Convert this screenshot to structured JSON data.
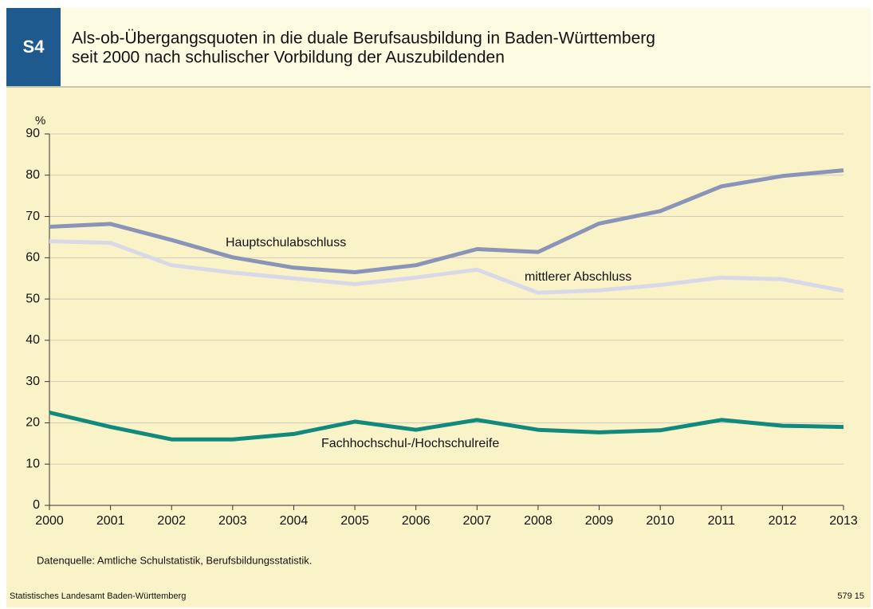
{
  "chart_data": {
    "type": "line",
    "badge": "S4",
    "title": "Als-ob-Übergangsquoten in die duale Berufsausbildung in Baden-Württemberg",
    "subtitle": "seit 2000 nach schulischer Vorbildung der Auszubildenden",
    "y_label": "%",
    "x": [
      2000,
      2001,
      2002,
      2003,
      2004,
      2005,
      2006,
      2007,
      2008,
      2009,
      2010,
      2011,
      2012,
      2013
    ],
    "xlim": [
      2000,
      2013
    ],
    "xticks": [
      2000,
      2001,
      2002,
      2003,
      2004,
      2005,
      2006,
      2007,
      2008,
      2009,
      2010,
      2011,
      2012,
      2013
    ],
    "ylim": [
      0,
      90
    ],
    "yticks": [
      0,
      10,
      20,
      30,
      40,
      50,
      60,
      70,
      80,
      90
    ],
    "grid": true,
    "series": [
      {
        "name": "Hauptschulabschluss",
        "color": "#8a93b8",
        "values": [
          67.5,
          68.2,
          64.3,
          60.1,
          57.6,
          56.5,
          58.2,
          62.1,
          61.4,
          68.3,
          71.3,
          77.3,
          79.8,
          81.2
        ]
      },
      {
        "name": "mittlerer Abschluss",
        "color": "#d8d9e8",
        "values": [
          64.0,
          63.6,
          58.2,
          56.4,
          55.0,
          53.6,
          55.2,
          57.1,
          51.5,
          52.1,
          53.4,
          55.2,
          54.8,
          52.0
        ]
      },
      {
        "name": "Fachhochschul-/Hochschulreife",
        "color": "#12897d",
        "values": [
          22.5,
          19.0,
          16.0,
          16.0,
          17.3,
          20.3,
          18.3,
          20.7,
          18.3,
          17.7,
          18.2,
          20.7,
          19.3,
          19.0
        ]
      }
    ],
    "source": "Datenquelle: Amtliche Schulstatistik, Berufsbildungsstatistik.",
    "footer_left": "Statistisches Landesamt Baden-Württemberg",
    "footer_right": "579 15"
  }
}
